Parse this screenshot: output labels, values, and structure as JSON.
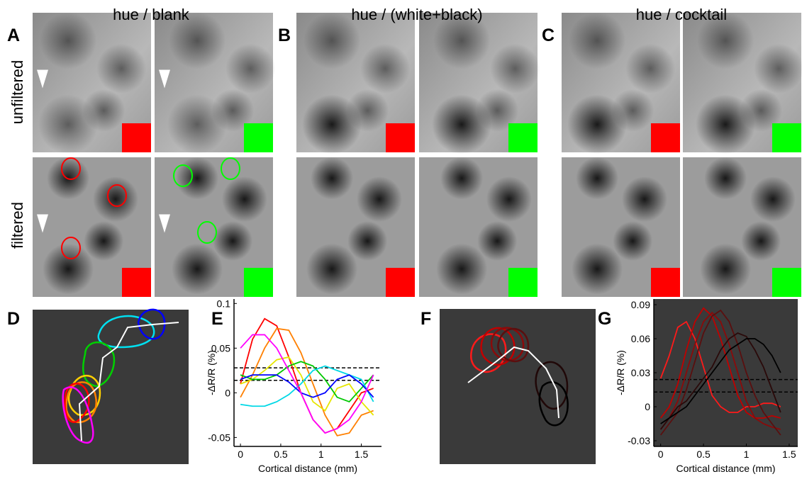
{
  "figure": {
    "column_titles": [
      "hue / blank",
      "hue / (white+black)",
      "hue / cocktail"
    ],
    "row_labels": [
      "unfiltered",
      "filtered"
    ],
    "panel_letters": [
      "A",
      "B",
      "C",
      "D",
      "E",
      "F",
      "G"
    ]
  },
  "chart_data": [
    {
      "type": "line",
      "ylabel": "-ΔR/R (%)",
      "xlabel": "Cortical distance (mm)",
      "xlim": [
        -0.08,
        1.75
      ],
      "xticks": [
        0,
        0.5,
        1,
        1.5
      ],
      "ylim": [
        -0.06,
        0.105
      ],
      "yticks": [
        -0.05,
        0,
        0.05,
        0.1
      ],
      "reference_lines": [
        0.028,
        0.014
      ],
      "x": [
        0,
        0.15,
        0.3,
        0.45,
        0.6,
        0.75,
        0.9,
        1.05,
        1.2,
        1.35,
        1.5,
        1.65
      ],
      "series": [
        {
          "color": "#ff0000",
          "values": [
            0.01,
            0.06,
            0.083,
            0.075,
            0.04,
            0.0,
            -0.03,
            -0.045,
            -0.04,
            -0.02,
            0.0,
            0.005
          ]
        },
        {
          "color": "#ff8000",
          "values": [
            -0.005,
            0.02,
            0.05,
            0.072,
            0.07,
            0.045,
            0.01,
            -0.025,
            -0.048,
            -0.045,
            -0.025,
            -0.02
          ]
        },
        {
          "color": "#e6e600",
          "values": [
            0.01,
            0.015,
            0.025,
            0.037,
            0.04,
            0.02,
            -0.01,
            -0.02,
            0.005,
            0.01,
            -0.01,
            -0.025
          ]
        },
        {
          "color": "#00c800",
          "values": [
            0.02,
            0.015,
            0.015,
            0.02,
            0.03,
            0.035,
            0.03,
            0.015,
            -0.005,
            -0.01,
            0.005,
            0.02
          ]
        },
        {
          "color": "#00d8e6",
          "values": [
            -0.013,
            -0.015,
            -0.015,
            -0.01,
            -0.002,
            0.01,
            0.025,
            0.03,
            0.025,
            0.02,
            0.015,
            -0.01
          ]
        },
        {
          "color": "#0000ff",
          "values": [
            0.015,
            0.02,
            0.02,
            0.02,
            0.012,
            0.0,
            -0.005,
            0.0,
            0.015,
            0.02,
            0.01,
            -0.005
          ]
        },
        {
          "color": "#ff00ff",
          "values": [
            0.05,
            0.065,
            0.065,
            0.05,
            0.025,
            0.0,
            -0.03,
            -0.045,
            -0.04,
            -0.03,
            -0.01,
            0.02
          ]
        }
      ]
    },
    {
      "type": "line",
      "ylabel": "-ΔR/R (%)",
      "xlabel": "Cortical distance (mm)",
      "xlim": [
        -0.08,
        1.6
      ],
      "xticks": [
        0,
        0.5,
        1,
        1.5
      ],
      "ylim": [
        -0.035,
        0.095
      ],
      "yticks": [
        -0.03,
        0,
        0.03,
        0.06,
        0.09
      ],
      "reference_lines": [
        0.024,
        0.013
      ],
      "x": [
        0,
        0.1,
        0.2,
        0.3,
        0.4,
        0.5,
        0.6,
        0.7,
        0.8,
        0.9,
        1.0,
        1.1,
        1.2,
        1.3,
        1.4
      ],
      "series": [
        {
          "color": "#ff1a1a",
          "values": [
            0.025,
            0.045,
            0.07,
            0.075,
            0.06,
            0.035,
            0.01,
            0.0,
            -0.005,
            -0.005,
            0.0,
            0.0,
            0.003,
            0.003,
            0.0
          ]
        },
        {
          "color": "#c00000",
          "values": [
            -0.01,
            0.0,
            0.02,
            0.05,
            0.075,
            0.087,
            0.08,
            0.06,
            0.035,
            0.01,
            -0.005,
            -0.01,
            -0.01,
            -0.008,
            -0.01
          ]
        },
        {
          "color": "#8b0a0a",
          "values": [
            -0.02,
            -0.01,
            0.005,
            0.03,
            0.055,
            0.075,
            0.083,
            0.075,
            0.055,
            0.03,
            0.005,
            -0.01,
            -0.015,
            -0.018,
            -0.02
          ]
        },
        {
          "color": "#5a0f0f",
          "values": [
            -0.025,
            -0.015,
            -0.005,
            0.015,
            0.04,
            0.065,
            0.08,
            0.085,
            0.075,
            0.055,
            0.03,
            0.01,
            -0.005,
            -0.015,
            -0.025
          ]
        },
        {
          "color": "#2a0a0a",
          "values": [
            -0.02,
            -0.01,
            0.0,
            0.005,
            0.015,
            0.025,
            0.035,
            0.05,
            0.06,
            0.065,
            0.062,
            0.05,
            0.035,
            0.015,
            -0.005
          ]
        },
        {
          "color": "#000000",
          "values": [
            -0.015,
            -0.01,
            -0.005,
            0.0,
            0.01,
            0.02,
            0.03,
            0.04,
            0.05,
            0.055,
            0.06,
            0.06,
            0.055,
            0.045,
            0.03
          ]
        }
      ]
    }
  ]
}
